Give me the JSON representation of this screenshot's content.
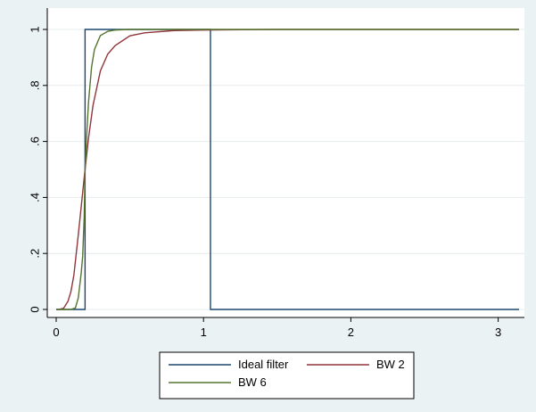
{
  "chart_data": {
    "type": "line",
    "title": "",
    "xlabel": "",
    "ylabel": "",
    "xlim": [
      0,
      3.1416
    ],
    "ylim": [
      0,
      1
    ],
    "x_ticks": [
      0,
      1,
      2,
      3
    ],
    "x_tick_labels": [
      "0",
      "1",
      "2",
      "3"
    ],
    "y_ticks": [
      0,
      0.2,
      0.4,
      0.6,
      0.8,
      1
    ],
    "y_tick_labels": [
      "0",
      ".2",
      ".4",
      ".6",
      ".8",
      "1"
    ],
    "grid": "horizontal",
    "legend_position": "bottom",
    "series": [
      {
        "name": "Ideal filter",
        "color": "#1a476f",
        "x": [
          0,
          0.196,
          0.196,
          1.047,
          1.047,
          3.1416
        ],
        "y": [
          0,
          0,
          1,
          1,
          0,
          0
        ]
      },
      {
        "name": "BW 2",
        "color": "#90353b",
        "x": [
          0,
          0.02,
          0.05,
          0.08,
          0.1,
          0.12,
          0.15,
          0.18,
          0.196,
          0.22,
          0.25,
          0.3,
          0.35,
          0.4,
          0.5,
          0.6,
          0.8,
          1.0,
          1.5,
          2.0,
          2.5,
          3.1416
        ],
        "y": [
          0,
          0.0001,
          0.004,
          0.029,
          0.064,
          0.122,
          0.266,
          0.419,
          0.5,
          0.614,
          0.729,
          0.852,
          0.912,
          0.942,
          0.977,
          0.988,
          0.996,
          0.998,
          1.0,
          1.0,
          1.0,
          1.0
        ]
      },
      {
        "name": "BW 6",
        "color": "#55752f",
        "x": [
          0,
          0.05,
          0.1,
          0.13,
          0.15,
          0.17,
          0.18,
          0.19,
          0.196,
          0.2,
          0.21,
          0.22,
          0.24,
          0.26,
          0.3,
          0.35,
          0.4,
          0.5,
          1.0,
          2.0,
          3.1416
        ],
        "y": [
          0,
          0,
          0.0003,
          0.005,
          0.041,
          0.131,
          0.192,
          0.33,
          0.5,
          0.539,
          0.653,
          0.744,
          0.865,
          0.929,
          0.978,
          0.993,
          0.998,
          1.0,
          1.0,
          1.0,
          1.0
        ]
      }
    ]
  }
}
